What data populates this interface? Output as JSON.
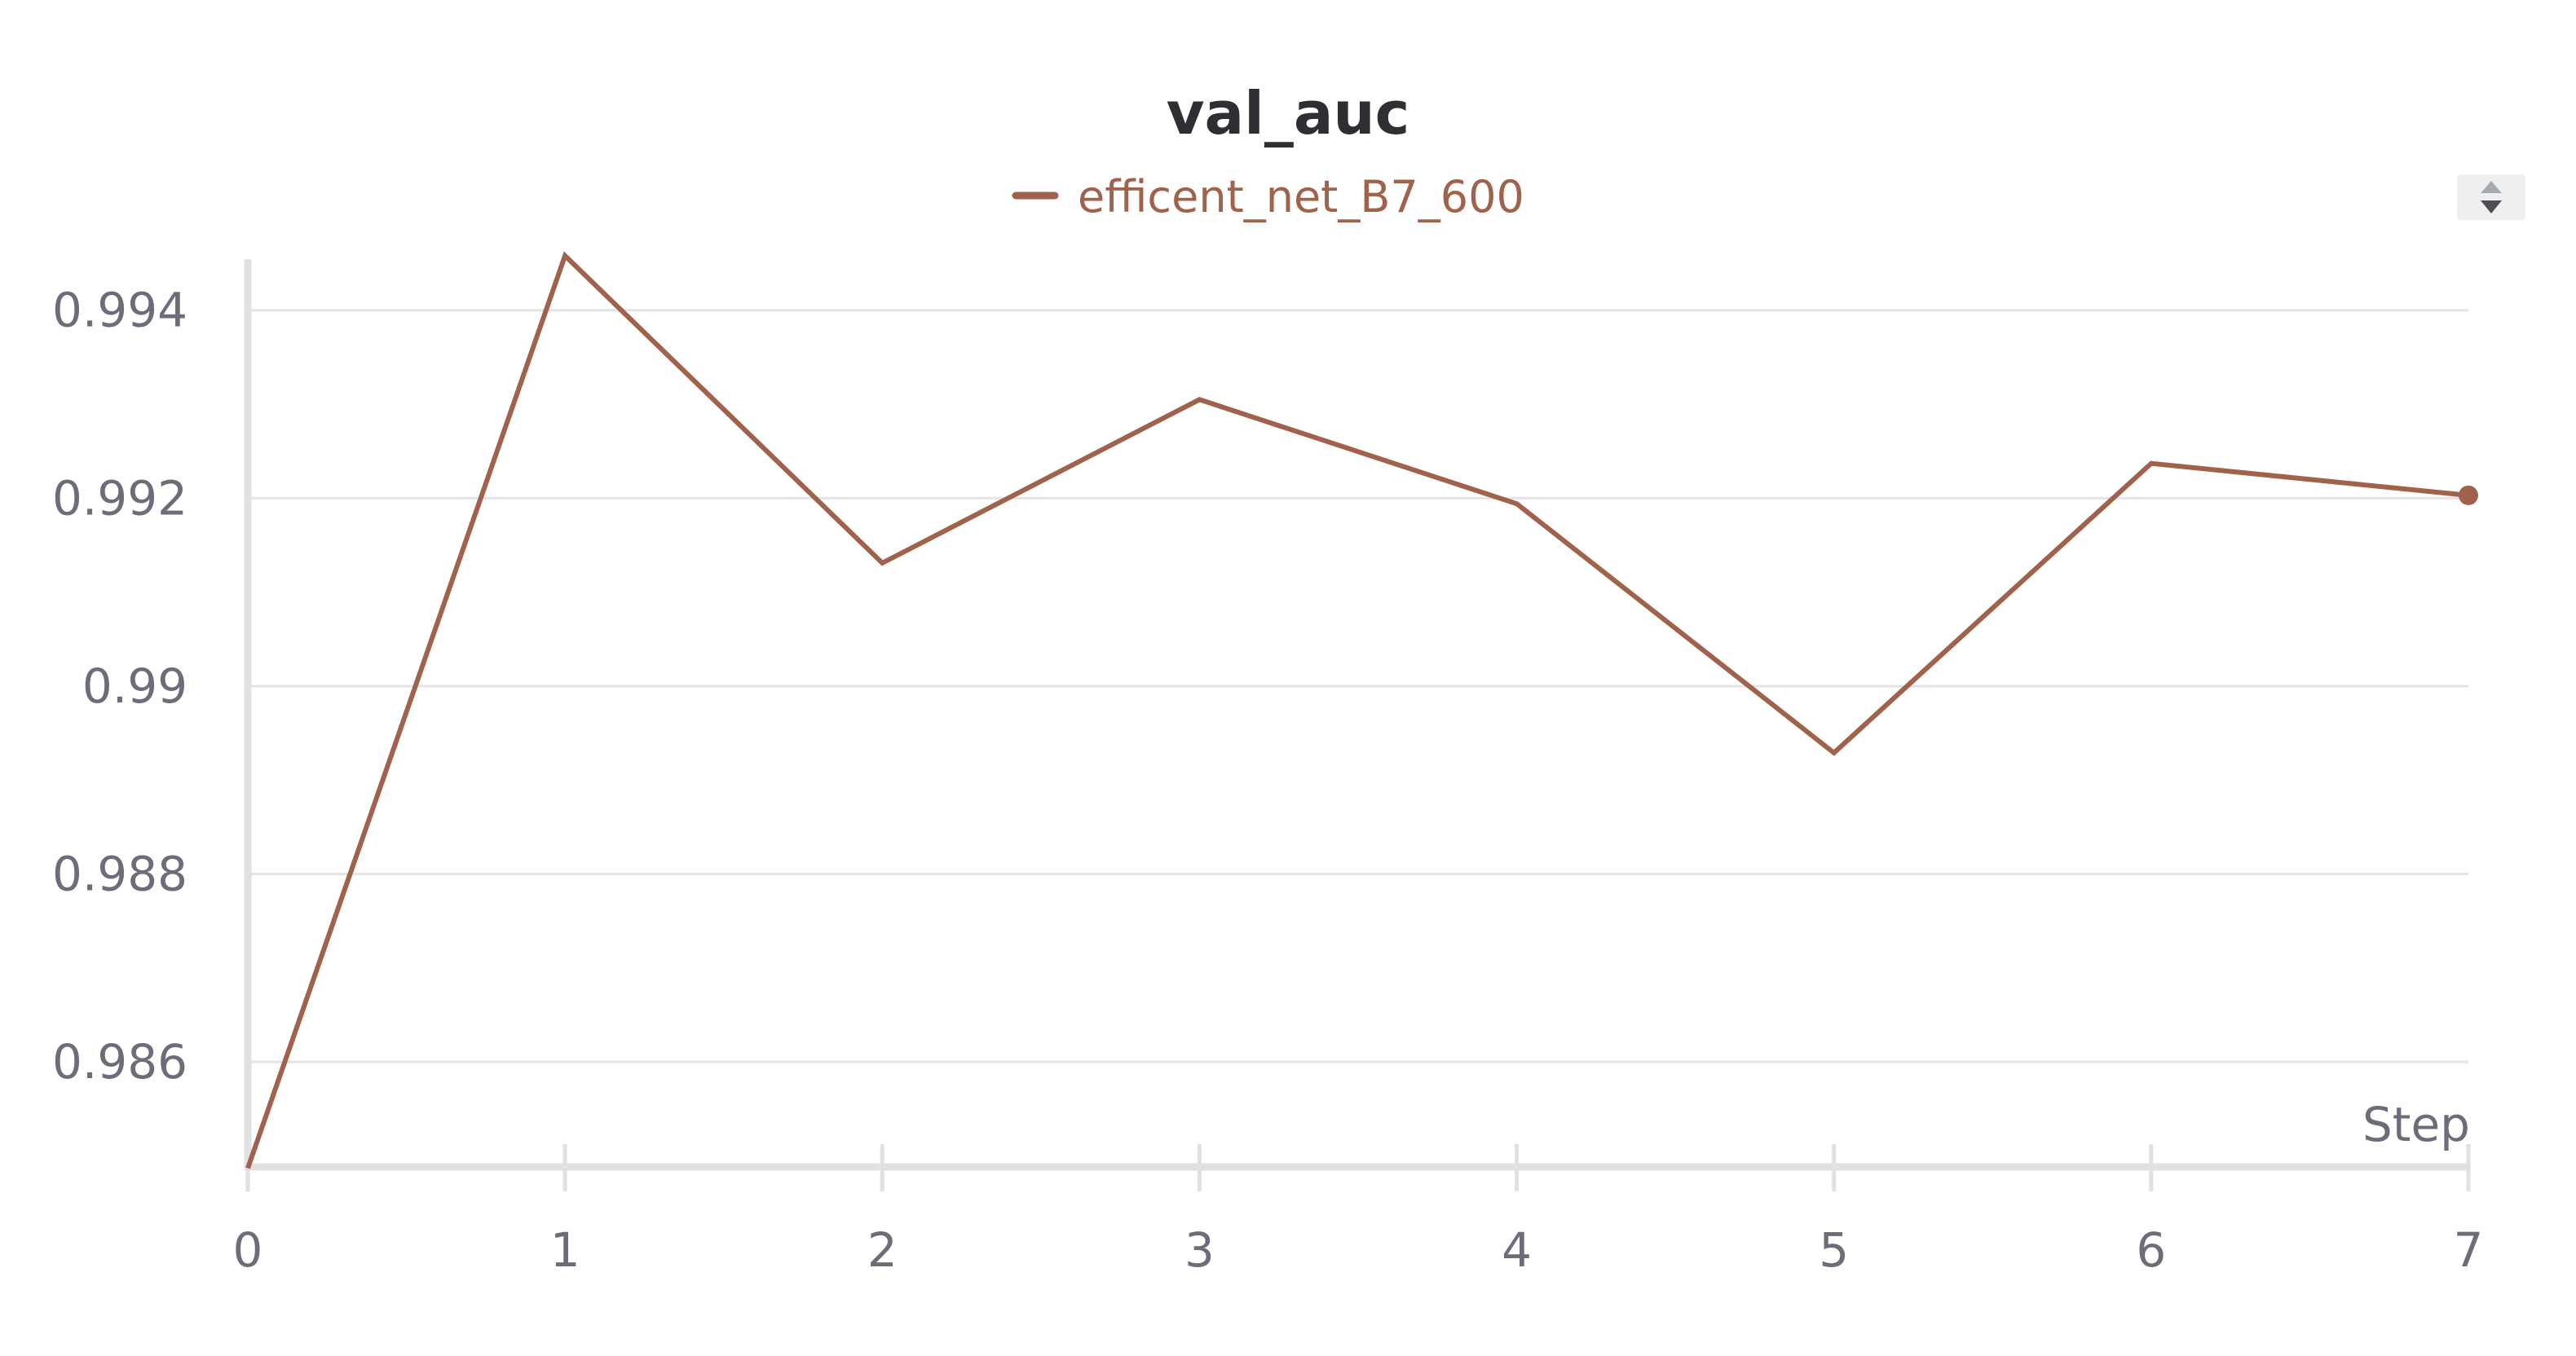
{
  "chart_data": {
    "type": "line",
    "title": "val_auc",
    "xlabel": "Step",
    "ylabel": "",
    "x": [
      0,
      1,
      2,
      3,
      4,
      5,
      6,
      7
    ],
    "x_ticks": [
      "0",
      "1",
      "2",
      "3",
      "4",
      "5",
      "6",
      "7"
    ],
    "y_ticks": [
      "0.986",
      "0.988",
      "0.99",
      "0.992",
      "0.994"
    ],
    "y_tick_values": [
      0.986,
      0.988,
      0.99,
      0.992,
      0.994
    ],
    "xlim": [
      0,
      7
    ],
    "ylim": [
      0.9849,
      0.9947
    ],
    "grid": true,
    "legend_position": "top-center",
    "series": [
      {
        "name": "efficent_net_B7_600",
        "color": "#a0624a",
        "values": [
          0.98487,
          0.99458,
          0.99131,
          0.99305,
          0.99194,
          0.98929,
          0.99237,
          0.99203
        ]
      }
    ]
  },
  "ui": {
    "legend_scroll_icons": [
      "chevron-up-icon",
      "chevron-down-icon"
    ]
  }
}
